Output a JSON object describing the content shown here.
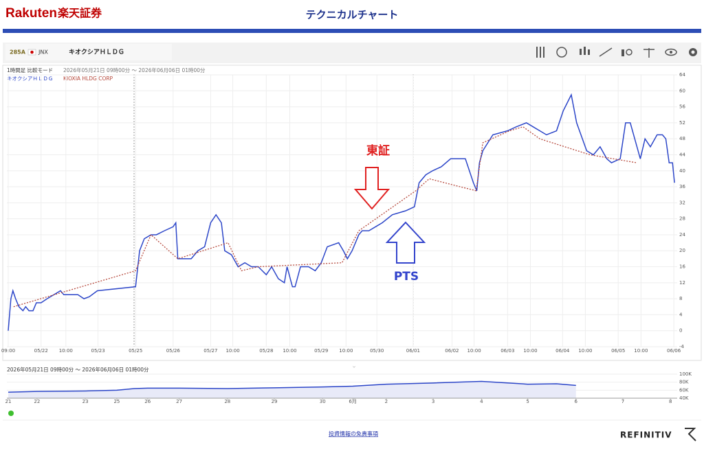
{
  "header": {
    "brand": "Rakuten",
    "brand_jp": "楽天証券",
    "title": "テクニカルチャート"
  },
  "toolbar": {
    "code": "285A",
    "exchange": "JNX",
    "name": "キオクシアＨＬＤＧ"
  },
  "chart_data": {
    "type": "line",
    "subtitle": "1時間足 比較モード",
    "range": "2026年05月21日 09時00分 ～ 2026年06月06日 01時00分",
    "annotations": [
      "東証",
      "PTS"
    ],
    "xlim": [
      0,
      100
    ],
    "xticks": [
      {
        "value": 0.2,
        "label": "09:00"
      },
      {
        "value": 5.1,
        "label": "05/22"
      },
      {
        "value": 8.8,
        "label": "10:00"
      },
      {
        "value": 13.6,
        "label": "05/23"
      },
      {
        "value": 19.2,
        "label": "05/25"
      },
      {
        "value": 24.8,
        "label": "05/26"
      },
      {
        "value": 30.4,
        "label": "05/27"
      },
      {
        "value": 33.7,
        "label": "10:00"
      },
      {
        "value": 38.7,
        "label": "05/28"
      },
      {
        "value": 42.2,
        "label": "10:00"
      },
      {
        "value": 46.9,
        "label": "05/29"
      },
      {
        "value": 50.6,
        "label": "10:00"
      },
      {
        "value": 55.2,
        "label": "05/30"
      },
      {
        "value": 60.6,
        "label": "06/01"
      },
      {
        "value": 66.4,
        "label": "06/02"
      },
      {
        "value": 69.7,
        "label": "10:00"
      },
      {
        "value": 74.7,
        "label": "06/03"
      },
      {
        "value": 78.1,
        "label": "10:00"
      },
      {
        "value": 82.9,
        "label": "06/04"
      },
      {
        "value": 86.3,
        "label": "10:00"
      },
      {
        "value": 91.2,
        "label": "06/05"
      },
      {
        "value": 94.6,
        "label": "10:00"
      },
      {
        "value": 99.5,
        "label": "06/06"
      }
    ],
    "ylim": [
      -4,
      64
    ],
    "yticks": [
      -4,
      0,
      4,
      8,
      12,
      16,
      20,
      24,
      28,
      32,
      36,
      40,
      44,
      48,
      52,
      56,
      60,
      64
    ],
    "grid": true,
    "series": [
      {
        "name": "キオクシアＨＬＤＧ",
        "color": "#2b45c8",
        "dash": false,
        "x": [
          0.2,
          0.6,
          0.9,
          1.3,
          1.8,
          2.4,
          2.8,
          3.3,
          3.9,
          4.4,
          5.1,
          6,
          8,
          8.5,
          9,
          10,
          10.6,
          11.5,
          12.3,
          13.5,
          19.2,
          19.8,
          20.5,
          21.5,
          22.3,
          23.5,
          24.8,
          25.2,
          25.5,
          26.5,
          27.5,
          28.5,
          29.5,
          30.4,
          31.2,
          32,
          32.5,
          33.5,
          34.5,
          35.5,
          36.5,
          37.5,
          38.7,
          39.5,
          40.5,
          41.4,
          41.8,
          42.6,
          43,
          43.8,
          45,
          46,
          46.9,
          47.8,
          49.5,
          50.2,
          50.8,
          51.5,
          52.5,
          53,
          54,
          55,
          56,
          57.5,
          59.5,
          60.8,
          61.5,
          62.5,
          63.5,
          64.8,
          66.2,
          68.4,
          69.6,
          70.1,
          70.5,
          71,
          72.5,
          74.7,
          76,
          77.5,
          78.5,
          79.5,
          80.5,
          82,
          83,
          84.2,
          85,
          86.5,
          87.5,
          88.5,
          89.5,
          90.2,
          91.5,
          92.3,
          93,
          94.5,
          95.2,
          96,
          97,
          97.8,
          98.3,
          98.8,
          99.3,
          99.6
        ],
        "values": [
          0,
          8,
          10,
          8,
          6,
          5,
          6,
          5,
          5,
          7,
          7,
          8,
          10,
          9,
          9,
          9,
          9,
          8,
          8.5,
          10,
          11,
          20,
          23,
          24,
          24,
          25,
          26,
          27,
          18,
          18,
          18,
          20,
          21,
          27,
          29,
          27,
          20,
          19,
          16,
          17,
          16,
          16,
          14,
          16,
          13,
          12,
          16,
          11,
          11,
          16,
          16,
          15,
          17,
          21,
          22,
          20,
          18,
          20,
          24,
          25,
          25,
          26,
          27,
          29,
          30,
          31,
          37,
          39,
          40,
          41,
          43,
          43,
          37,
          35,
          42,
          45,
          49,
          50,
          51,
          52,
          51,
          50,
          49,
          50,
          55,
          59,
          52,
          45,
          44,
          46,
          43,
          42,
          43,
          52,
          52,
          43,
          48,
          46,
          49,
          49,
          48,
          42,
          42,
          37
        ]
      },
      {
        "name": "KIOXIA HLDG CORP",
        "color": "#b5473a",
        "dash": true,
        "x": [
          1,
          19.2,
          21.5,
          25.5,
          33,
          35,
          37.5,
          50,
          52.5,
          61,
          63,
          70,
          71,
          75,
          77,
          79.5,
          87,
          94
        ],
        "values": [
          6,
          15,
          24,
          18,
          22,
          15,
          16,
          17,
          25,
          35,
          38,
          35,
          47,
          50,
          51,
          48,
          44,
          42
        ]
      }
    ]
  },
  "navigator": {
    "range": "2026年05月21日 09時00分 ～ 2026年06月06日 01時00分",
    "xlim": [
      0,
      100
    ],
    "xticks": [
      {
        "value": 0.2,
        "label": "21"
      },
      {
        "value": 4.5,
        "label": "22"
      },
      {
        "value": 11.7,
        "label": "23"
      },
      {
        "value": 16.4,
        "label": "25"
      },
      {
        "value": 21.0,
        "label": "26"
      },
      {
        "value": 25.7,
        "label": "27"
      },
      {
        "value": 32.9,
        "label": "28"
      },
      {
        "value": 39.9,
        "label": "29"
      },
      {
        "value": 47.1,
        "label": "30"
      },
      {
        "value": 51.6,
        "label": "6月"
      },
      {
        "value": 56.6,
        "label": "2"
      },
      {
        "value": 63.6,
        "label": "3"
      },
      {
        "value": 70.8,
        "label": "4"
      },
      {
        "value": 77.7,
        "label": "5"
      },
      {
        "value": 84.9,
        "label": "6"
      },
      {
        "value": 91.9,
        "label": "7"
      },
      {
        "value": 99.0,
        "label": "8"
      }
    ],
    "ylim": [
      40000,
      100000
    ],
    "yticks": [
      {
        "value": 40000,
        "label": "40K"
      },
      {
        "value": 60000,
        "label": "60K"
      },
      {
        "value": 80000,
        "label": "80K"
      },
      {
        "value": 100000,
        "label": "100K"
      }
    ],
    "x": [
      0.2,
      4.5,
      11.7,
      16.4,
      19,
      21,
      25.7,
      32.9,
      39.9,
      47.1,
      51.6,
      56.6,
      63.6,
      70.8,
      77.7,
      82,
      84.9
    ],
    "values": [
      55000,
      57000,
      58000,
      60000,
      64000,
      65000,
      65000,
      64000,
      66000,
      68000,
      70000,
      75000,
      78000,
      82000,
      75000,
      76000,
      72000
    ]
  },
  "footer": {
    "disclaimer": "投資情報の免責事項",
    "vendor": "REFINITIV"
  }
}
